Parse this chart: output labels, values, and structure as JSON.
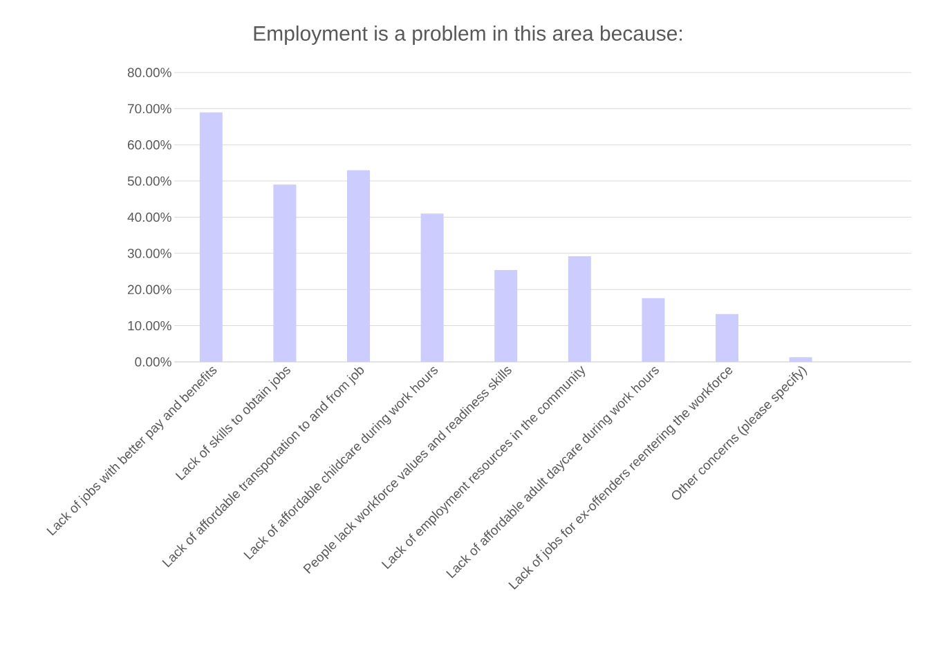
{
  "chart_data": {
    "type": "bar",
    "title": "Employment is a problem in this area because:",
    "categories": [
      "Lack of jobs with better pay and benefits",
      "Lack of skills to obtain jobs",
      "Lack of affordable transportation to and from job",
      "Lack of affordable childcare during work hours",
      "People lack workforce values and readiness skills",
      "Lack of employment resources in the community",
      "Lack of affordable adult daycare during work hours",
      "Lack of jobs for ex-offenders reentering the workforce",
      "Other concerns (please specify)",
      null
    ],
    "values": [
      69,
      49,
      53,
      41,
      25.4,
      29.2,
      17.6,
      13.2,
      1.3,
      null
    ],
    "color": "#ccccff",
    "ylim": [
      0,
      80
    ],
    "yticks": [
      {
        "value": 0,
        "label": "0.00%"
      },
      {
        "value": 10,
        "label": "10.00%"
      },
      {
        "value": 20,
        "label": "20.00%"
      },
      {
        "value": 30,
        "label": "30.00%"
      },
      {
        "value": 40,
        "label": "40.00%"
      },
      {
        "value": 50,
        "label": "50.00%"
      },
      {
        "value": 60,
        "label": "60.00%"
      },
      {
        "value": 70,
        "label": "70.00%"
      },
      {
        "value": 80,
        "label": "80.00%"
      }
    ],
    "grid": true
  }
}
